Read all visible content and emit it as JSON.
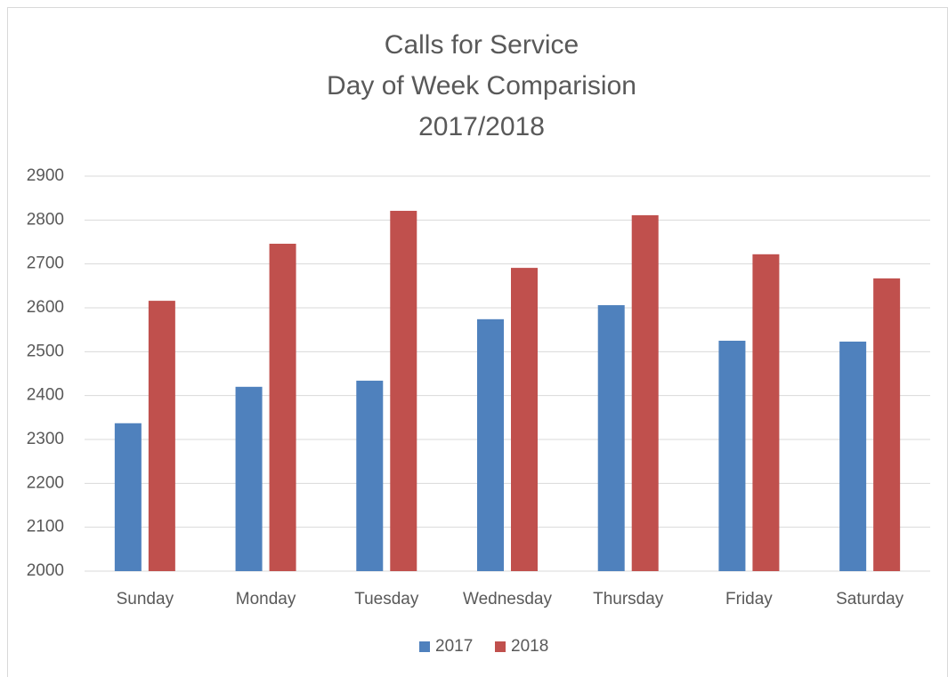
{
  "chart_data": {
    "type": "bar",
    "title": [
      "Calls for Service",
      "Day of Week Comparision",
      "2017/2018"
    ],
    "categories": [
      "Sunday",
      "Monday",
      "Tuesday",
      "Wednesday",
      "Thursday",
      "Friday",
      "Saturday"
    ],
    "series": [
      {
        "name": "2017",
        "color": "#4f81bd",
        "values": [
          2337,
          2420,
          2434,
          2574,
          2606,
          2525,
          2523
        ]
      },
      {
        "name": "2018",
        "color": "#c0504d",
        "values": [
          2616,
          2746,
          2821,
          2691,
          2811,
          2722,
          2667
        ]
      }
    ],
    "ylim": [
      2000,
      2900
    ],
    "yticks": [
      2000,
      2100,
      2200,
      2300,
      2400,
      2500,
      2600,
      2700,
      2800,
      2900
    ],
    "grid": true,
    "legend": "bottom"
  }
}
